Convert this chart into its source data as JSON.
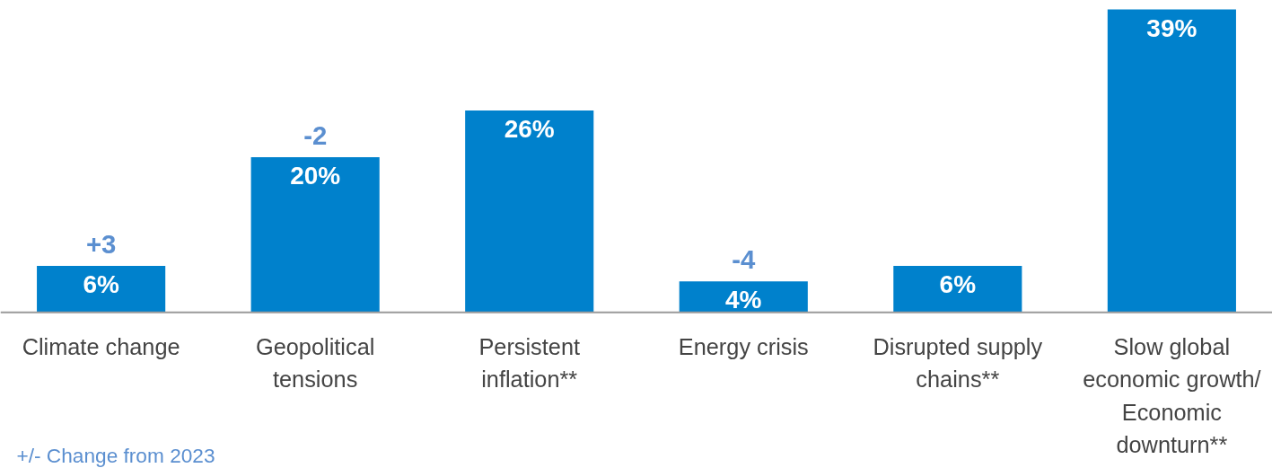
{
  "chart_data": {
    "type": "bar",
    "categories": [
      "Climate change",
      "Geopolitical tensions",
      "Persistent inflation**",
      "Energy crisis",
      "Disrupted supply chains**",
      "Slow global economic growth/ Economic downturn**"
    ],
    "values": [
      6,
      20,
      26,
      4,
      6,
      39
    ],
    "color": "#0081cc",
    "value_labels": [
      "6%",
      "20%",
      "26%",
      "4%",
      "6%",
      "39%"
    ],
    "annotations": [
      {
        "text": "+3",
        "x": "Climate change",
        "y": 6
      },
      {
        "text": "-2",
        "x": "Geopolitical tensions",
        "y": 20
      },
      {
        "text": "-4",
        "x": "Energy crisis",
        "y": 4
      },
      "+/- Change from 2023"
    ]
  }
}
